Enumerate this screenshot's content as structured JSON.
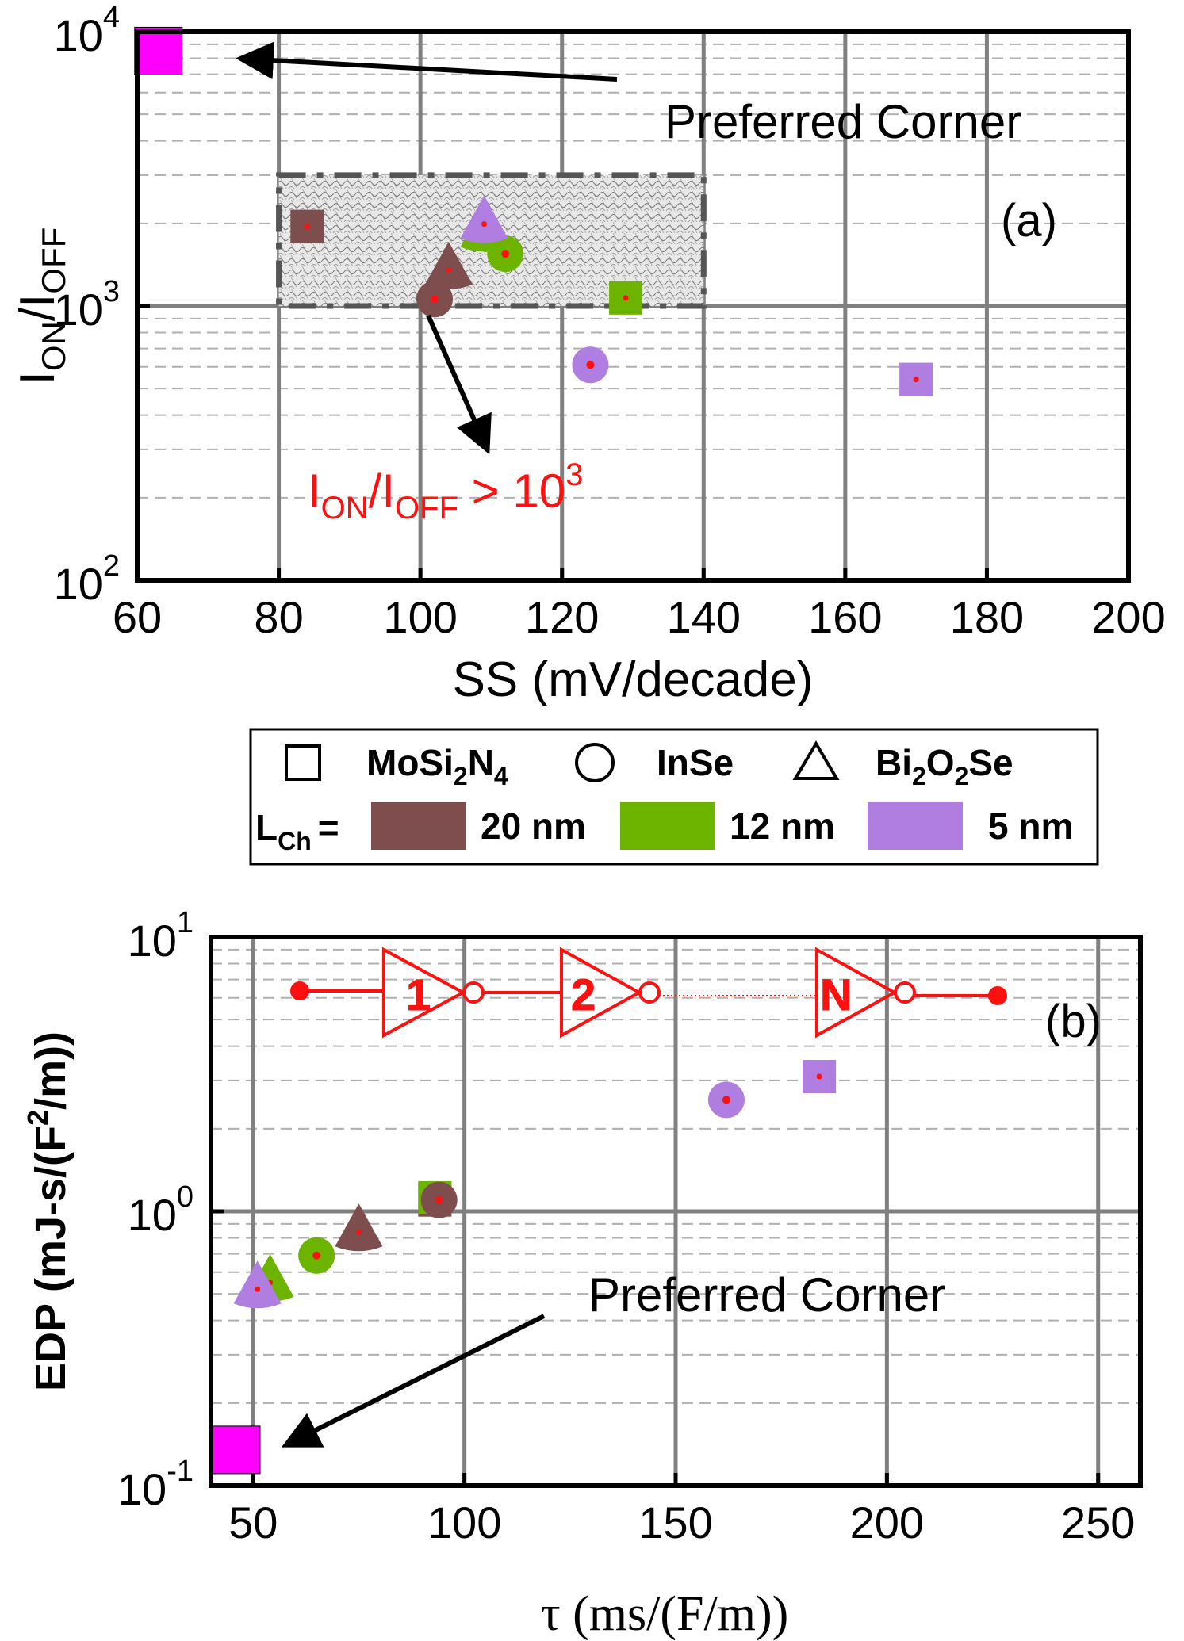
{
  "colors": {
    "brown": "#7e4d4d",
    "green": "#6cb400",
    "purple": "#b07ee0",
    "magenta": "#ff00ff",
    "red": "#ff1010",
    "grid_major": "#808080",
    "grid_minor": "#b0b0b0"
  },
  "legend": {
    "materials": [
      {
        "shape": "square",
        "label_main": "MoSi",
        "sub1": "2",
        "mid": "N",
        "sub2": "4",
        "tail": ""
      },
      {
        "shape": "circle",
        "label_main": "InSe",
        "sub1": "",
        "mid": "",
        "sub2": "",
        "tail": ""
      },
      {
        "shape": "triangle",
        "label_main": "Bi",
        "sub1": "2",
        "mid": "O",
        "sub2": "2",
        "tail": "Se"
      }
    ],
    "lch_label": "L",
    "lch_sub": "Ch",
    "lch_eq": "=",
    "lengths": [
      {
        "label": "20 nm",
        "color": "brown"
      },
      {
        "label": "12 nm",
        "color": "green"
      },
      {
        "label": "5 nm",
        "color": "purple"
      }
    ]
  },
  "chart_data": [
    {
      "id": "a",
      "type": "scatter",
      "panel_label": "(a)",
      "xlabel": "SS (mV/decade)",
      "ylabel": {
        "main": "I",
        "sub1": "ON",
        "slash": "/I",
        "sub2": "OFF"
      },
      "xlim": [
        60,
        200
      ],
      "ylim_log10": [
        2,
        4
      ],
      "x_ticks": [
        60,
        80,
        100,
        120,
        140,
        160,
        180,
        200
      ],
      "y_ticks": [
        {
          "base": "10",
          "exp": "2",
          "v": 100
        },
        {
          "base": "10",
          "exp": "3",
          "v": 1000
        },
        {
          "base": "10",
          "exp": "4",
          "v": 10000
        }
      ],
      "grid": true,
      "series": [
        {
          "material": "MoSi2N4",
          "length": "20 nm",
          "color": "brown",
          "shape": "square",
          "x": 84,
          "y": 1950
        },
        {
          "material": "MoSi2N4",
          "length": "12 nm",
          "color": "green",
          "shape": "square",
          "x": 129,
          "y": 1070
        },
        {
          "material": "MoSi2N4",
          "length": "5 nm",
          "color": "purple",
          "shape": "square",
          "x": 170,
          "y": 540
        },
        {
          "material": "InSe",
          "length": "20 nm",
          "color": "brown",
          "shape": "circle",
          "x": 102,
          "y": 1060
        },
        {
          "material": "InSe",
          "length": "12 nm",
          "color": "green",
          "shape": "circle",
          "x": 112,
          "y": 1550
        },
        {
          "material": "InSe",
          "length": "5 nm",
          "color": "purple",
          "shape": "circle",
          "x": 124,
          "y": 610
        },
        {
          "material": "Bi2O2Se",
          "length": "20 nm",
          "color": "brown",
          "shape": "triangle",
          "x": 104,
          "y": 1350
        },
        {
          "material": "Bi2O2Se",
          "length": "12 nm",
          "color": "green",
          "shape": "triangle",
          "x": 109,
          "y": 1850
        },
        {
          "material": "Bi2O2Se",
          "length": "5 nm",
          "color": "purple",
          "shape": "triangle",
          "x": 109,
          "y": 1990
        }
      ],
      "preferred_marker": {
        "x": 63,
        "y": 8500
      },
      "annotations": {
        "preferred": "Preferred Corner",
        "region_label": {
          "main": "I",
          "sub1": "ON",
          "slash": "/I",
          "sub2": "OFF",
          "rel": " > 10",
          "exp": "3"
        },
        "region_box": {
          "x0": 80,
          "x1": 140,
          "y0": 1000,
          "y1": 3000
        }
      }
    },
    {
      "id": "b",
      "type": "scatter",
      "panel_label": "(b)",
      "xlabel": "τ (ms/(F/m))",
      "ylabel": {
        "main": "EDP (mJ-s/(F",
        "exp": "2",
        "tail": "/m))"
      },
      "xlim": [
        40,
        260
      ],
      "ylim_log10": [
        -1,
        1
      ],
      "x_ticks": [
        50,
        100,
        150,
        200,
        250
      ],
      "y_ticks": [
        {
          "base": "10",
          "exp": "-1",
          "v": 0.1
        },
        {
          "base": "10",
          "exp": "0",
          "v": 1
        },
        {
          "base": "10",
          "exp": "1",
          "v": 10
        }
      ],
      "grid": true,
      "series": [
        {
          "material": "MoSi2N4",
          "length": "20 nm",
          "color": "brown",
          "shape": "square",
          "x": 93,
          "y": 1.1
        },
        {
          "material": "MoSi2N4",
          "length": "12 nm",
          "color": "green",
          "shape": "square",
          "x": 93,
          "y": 1.12
        },
        {
          "material": "MoSi2N4",
          "length": "5 nm",
          "color": "purple",
          "shape": "square",
          "x": 184,
          "y": 3.1
        },
        {
          "material": "InSe",
          "length": "20 nm",
          "color": "brown",
          "shape": "circle",
          "x": 94,
          "y": 1.1
        },
        {
          "material": "InSe",
          "length": "12 nm",
          "color": "green",
          "shape": "circle",
          "x": 65,
          "y": 0.69
        },
        {
          "material": "InSe",
          "length": "5 nm",
          "color": "purple",
          "shape": "circle",
          "x": 162,
          "y": 2.55
        },
        {
          "material": "Bi2O2Se",
          "length": "20 nm",
          "color": "brown",
          "shape": "triangle",
          "x": 75,
          "y": 0.84
        },
        {
          "material": "Bi2O2Se",
          "length": "12 nm",
          "color": "green",
          "shape": "triangle",
          "x": 54,
          "y": 0.55
        },
        {
          "material": "Bi2O2Se",
          "length": "5 nm",
          "color": "purple",
          "shape": "triangle",
          "x": 51,
          "y": 0.52
        }
      ],
      "preferred_marker": {
        "x": 46,
        "y": 0.135
      },
      "annotations": {
        "preferred": "Preferred Corner",
        "inverter_chain": [
          "1",
          "2",
          "N"
        ]
      }
    }
  ]
}
